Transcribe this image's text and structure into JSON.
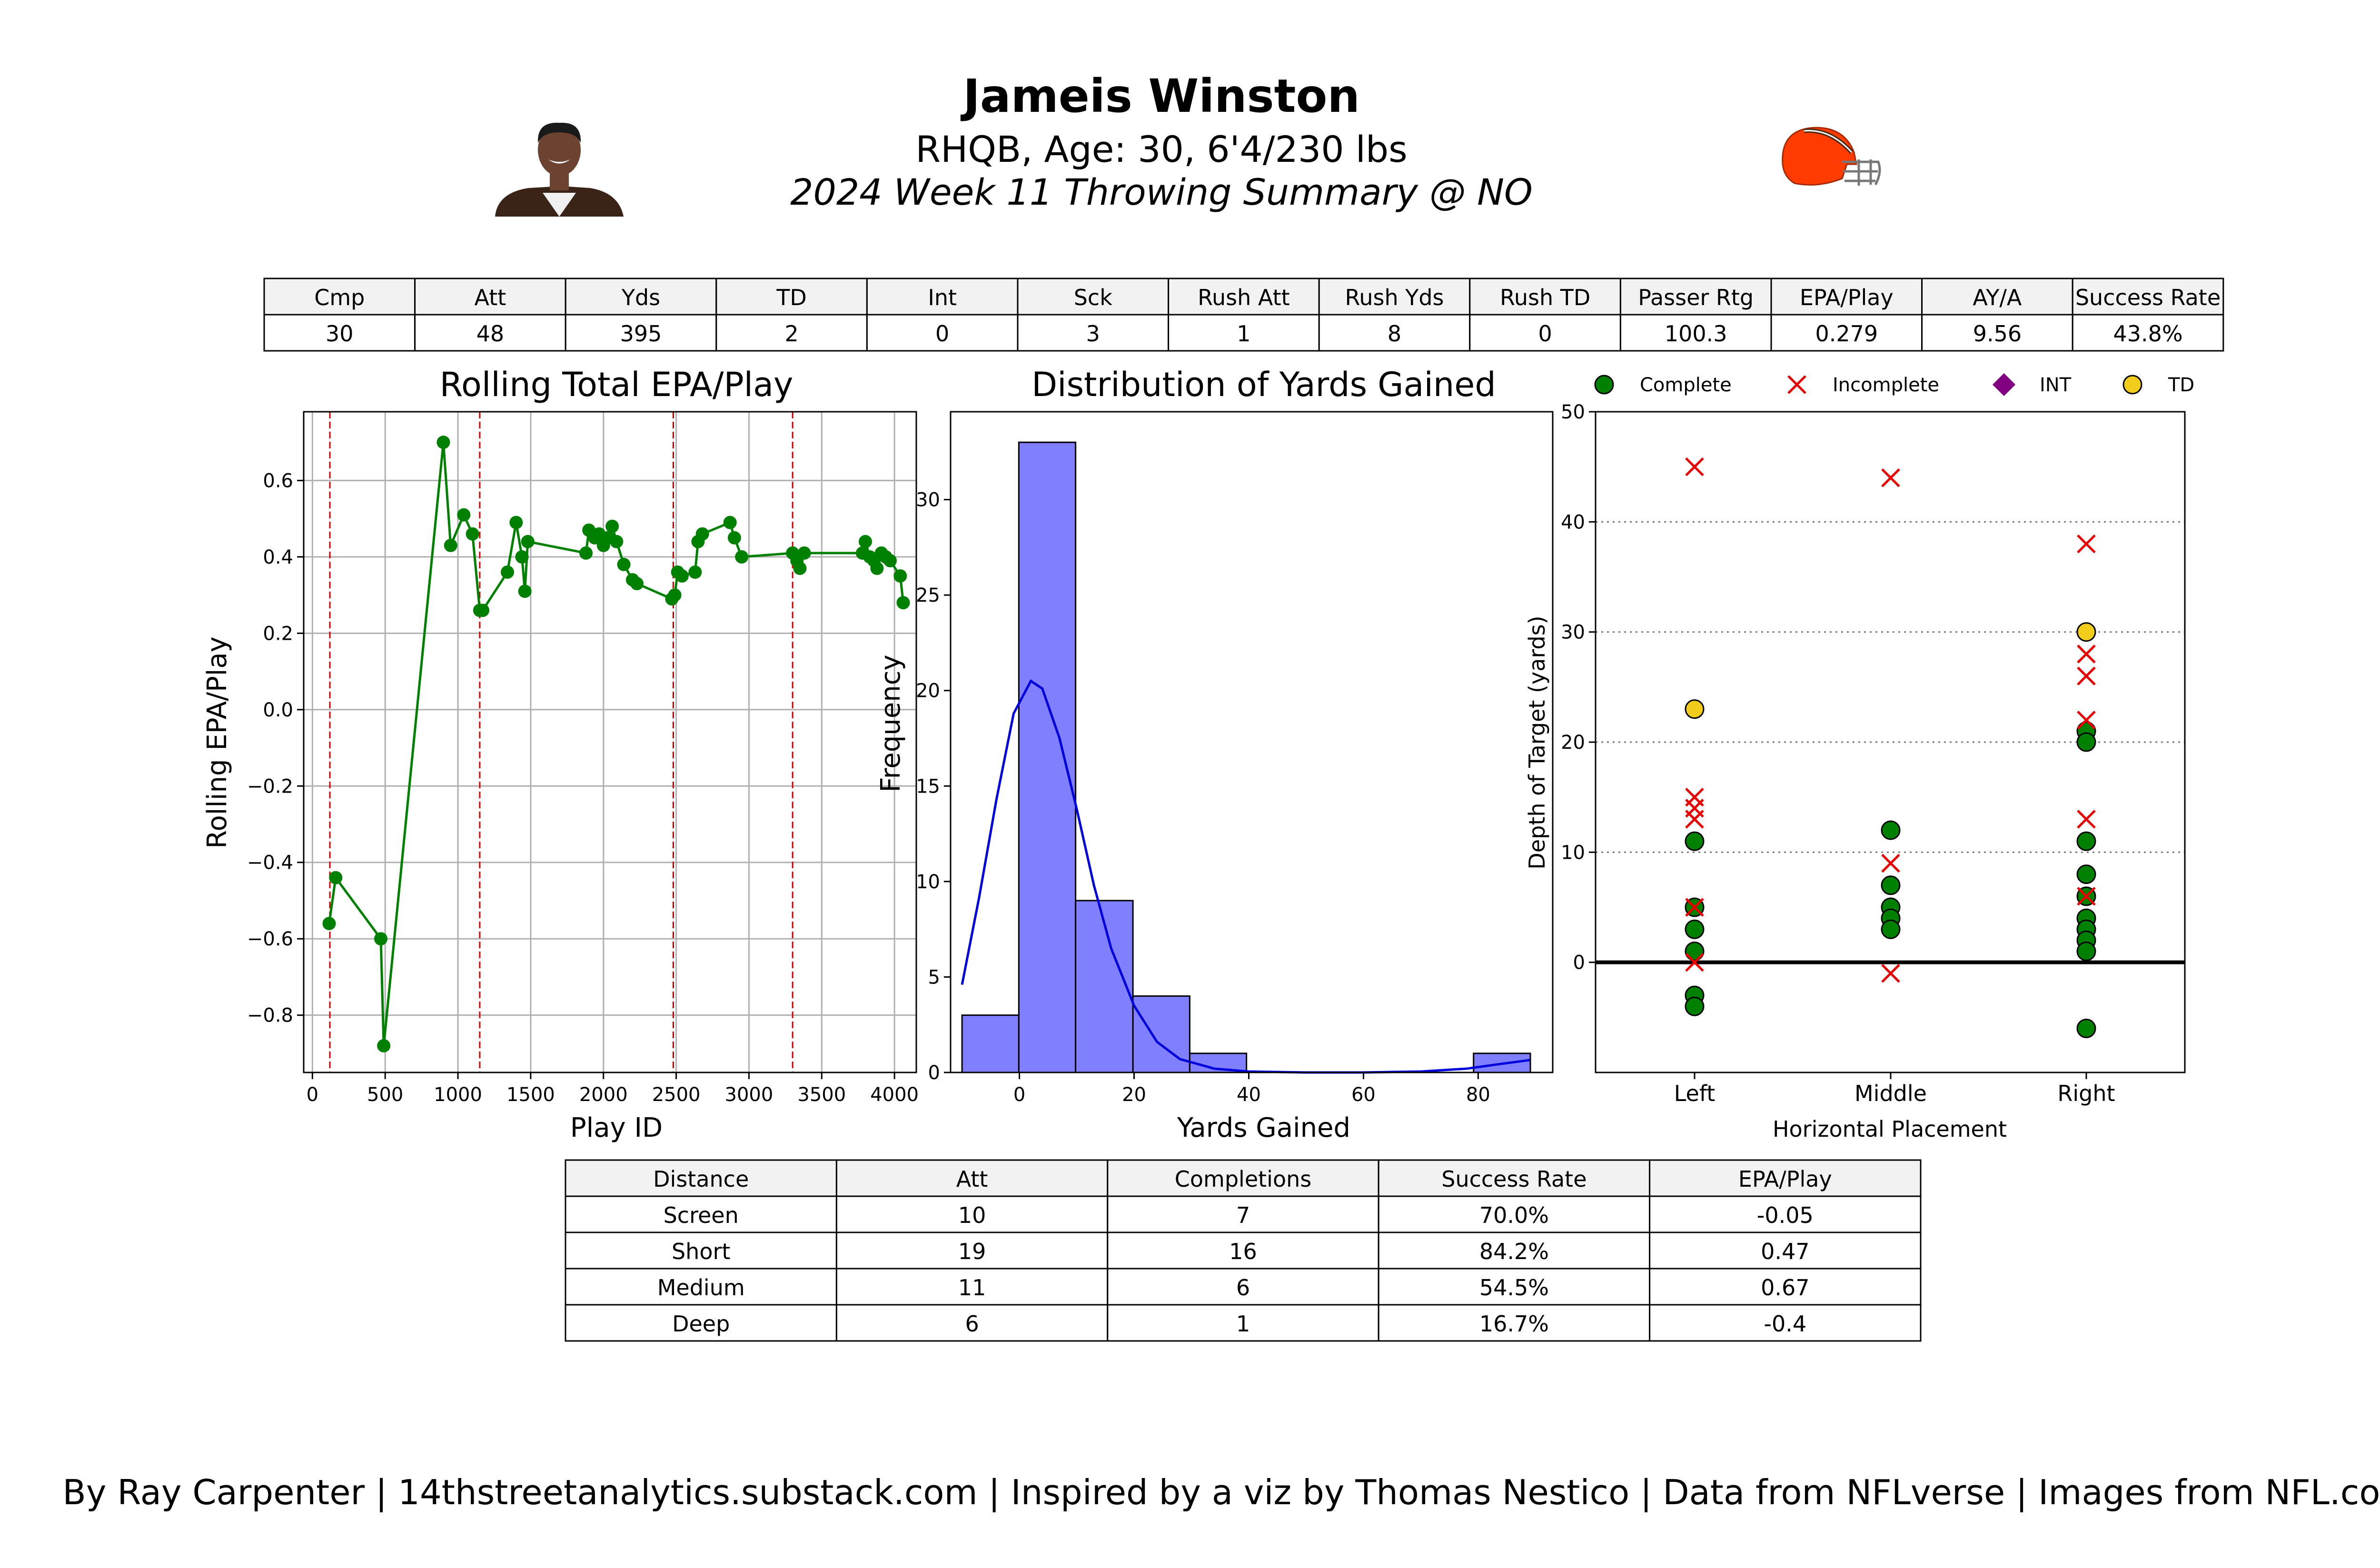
{
  "header": {
    "player_name": "Jameis Winston",
    "bio": "RHQB, Age: 30, 6'4/230 lbs",
    "subtitle": "2024 Week 11 Throwing Summary @ NO",
    "player_photo_icon": "player-headshot",
    "team_logo_icon": "browns-helmet-logo"
  },
  "summary_table": {
    "headers": [
      "Cmp",
      "Att",
      "Yds",
      "TD",
      "Int",
      "Sck",
      "Rush Att",
      "Rush Yds",
      "Rush TD",
      "Passer Rtg",
      "EPA/Play",
      "AY/A",
      "Success Rate"
    ],
    "values": [
      "30",
      "48",
      "395",
      "2",
      "0",
      "3",
      "1",
      "8",
      "0",
      "100.3",
      "0.279",
      "9.56",
      "43.8%"
    ]
  },
  "distance_table": {
    "headers": [
      "Distance",
      "Att",
      "Completions",
      "Success Rate",
      "EPA/Play"
    ],
    "rows": [
      [
        "Screen",
        "10",
        "7",
        "70.0%",
        "-0.05"
      ],
      [
        "Short",
        "19",
        "16",
        "84.2%",
        "0.47"
      ],
      [
        "Medium",
        "11",
        "6",
        "54.5%",
        "0.67"
      ],
      [
        "Deep",
        "6",
        "1",
        "16.7%",
        "-0.4"
      ]
    ]
  },
  "footer": "By Ray Carpenter | 14thstreetanalytics.substack.com | Inspired by a viz by Thomas Nestico | Data from NFLverse | Images from NFL.com",
  "colors": {
    "line": "#008000",
    "vline": "#d40000",
    "bar": "#8080ff",
    "kde": "#0000dd",
    "complete": "#008000",
    "incomplete": "#e60000",
    "int": "#800080",
    "td": "#f2cc1a",
    "table_header_bg": "#f2f2f2",
    "helmet": "#ff3c00"
  },
  "chart_data": [
    {
      "type": "line",
      "title": "Rolling Total EPA/Play",
      "xlabel": "Play ID",
      "ylabel": "Rolling EPA/Play",
      "xlim": [
        -60,
        4150
      ],
      "ylim": [
        -0.95,
        0.78
      ],
      "xticks": [
        0,
        500,
        1000,
        1500,
        2000,
        2500,
        3000,
        3500,
        4000
      ],
      "yticks": [
        -0.8,
        -0.6,
        -0.4,
        -0.2,
        0.0,
        0.2,
        0.4,
        0.6
      ],
      "grid": true,
      "quarter_lines": [
        120,
        1150,
        2480,
        3300
      ],
      "points": [
        [
          115,
          -0.56
        ],
        [
          160,
          -0.44
        ],
        [
          470,
          -0.6
        ],
        [
          490,
          -0.88
        ],
        [
          900,
          0.7
        ],
        [
          950,
          0.43
        ],
        [
          1040,
          0.51
        ],
        [
          1100,
          0.46
        ],
        [
          1150,
          0.26
        ],
        [
          1170,
          0.26
        ],
        [
          1340,
          0.36
        ],
        [
          1400,
          0.49
        ],
        [
          1440,
          0.4
        ],
        [
          1460,
          0.31
        ],
        [
          1480,
          0.44
        ],
        [
          1880,
          0.41
        ],
        [
          1900,
          0.47
        ],
        [
          1940,
          0.45
        ],
        [
          1970,
          0.46
        ],
        [
          2000,
          0.43
        ],
        [
          2030,
          0.45
        ],
        [
          2060,
          0.48
        ],
        [
          2090,
          0.44
        ],
        [
          2140,
          0.38
        ],
        [
          2200,
          0.34
        ],
        [
          2230,
          0.33
        ],
        [
          2470,
          0.29
        ],
        [
          2490,
          0.3
        ],
        [
          2510,
          0.36
        ],
        [
          2540,
          0.35
        ],
        [
          2630,
          0.36
        ],
        [
          2650,
          0.44
        ],
        [
          2680,
          0.46
        ],
        [
          2870,
          0.49
        ],
        [
          2900,
          0.45
        ],
        [
          2950,
          0.4
        ],
        [
          3300,
          0.41
        ],
        [
          3330,
          0.39
        ],
        [
          3350,
          0.37
        ],
        [
          3380,
          0.41
        ],
        [
          3780,
          0.41
        ],
        [
          3800,
          0.44
        ],
        [
          3830,
          0.4
        ],
        [
          3860,
          0.39
        ],
        [
          3880,
          0.37
        ],
        [
          3910,
          0.41
        ],
        [
          3940,
          0.4
        ],
        [
          3970,
          0.39
        ],
        [
          4040,
          0.35
        ],
        [
          4060,
          0.28
        ]
      ]
    },
    {
      "type": "bar",
      "title": "Distribution of Yards Gained",
      "xlabel": "Yards Gained",
      "ylabel": "Frequency",
      "xlim": [
        -12,
        93
      ],
      "ylim": [
        0,
        34.6
      ],
      "xticks": [
        0,
        20,
        40,
        60,
        80
      ],
      "yticks": [
        0,
        5,
        10,
        15,
        20,
        25,
        30
      ],
      "bins": [
        [
          -10,
          -0.1,
          3
        ],
        [
          -0.1,
          9.8,
          33
        ],
        [
          9.8,
          19.8,
          9
        ],
        [
          19.8,
          29.7,
          4
        ],
        [
          29.7,
          39.6,
          1
        ],
        [
          39.6,
          49.5,
          0
        ],
        [
          49.5,
          59.4,
          0
        ],
        [
          59.4,
          69.3,
          0
        ],
        [
          69.3,
          79.2,
          0
        ],
        [
          79.2,
          89.1,
          1
        ]
      ],
      "kde": [
        [
          -10,
          4.6
        ],
        [
          -7,
          9.2
        ],
        [
          -4,
          14.3
        ],
        [
          -1,
          18.8
        ],
        [
          2,
          20.5
        ],
        [
          4,
          20.1
        ],
        [
          7,
          17.5
        ],
        [
          10,
          13.8
        ],
        [
          13,
          9.8
        ],
        [
          16,
          6.5
        ],
        [
          20,
          3.5
        ],
        [
          24,
          1.6
        ],
        [
          28,
          0.7
        ],
        [
          34,
          0.2
        ],
        [
          40,
          0.05
        ],
        [
          50,
          0.0
        ],
        [
          60,
          0.0
        ],
        [
          70,
          0.05
        ],
        [
          78,
          0.2
        ],
        [
          84,
          0.45
        ],
        [
          89,
          0.65
        ]
      ]
    },
    {
      "type": "scatter",
      "xlabel": "Horizontal Placement",
      "ylabel": "Depth of Target (yards)",
      "categories": [
        "Left",
        "Middle",
        "Right"
      ],
      "ylim": [
        -10,
        50
      ],
      "yticks": [
        0,
        10,
        20,
        30,
        40,
        50
      ],
      "grid": "horizontal dotted",
      "legend": "top",
      "legend_labels": [
        "Complete",
        "Incomplete",
        "INT",
        "TD"
      ],
      "complete": [
        [
          "Left",
          11
        ],
        [
          "Left",
          5
        ],
        [
          "Left",
          3
        ],
        [
          "Left",
          1
        ],
        [
          "Left",
          -3
        ],
        [
          "Left",
          -4
        ],
        [
          "Middle",
          12
        ],
        [
          "Middle",
          7
        ],
        [
          "Middle",
          5
        ],
        [
          "Middle",
          4
        ],
        [
          "Middle",
          3
        ],
        [
          "Right",
          21
        ],
        [
          "Right",
          20
        ],
        [
          "Right",
          11
        ],
        [
          "Right",
          8
        ],
        [
          "Right",
          6
        ],
        [
          "Right",
          4
        ],
        [
          "Right",
          3
        ],
        [
          "Right",
          2
        ],
        [
          "Right",
          1
        ],
        [
          "Right",
          -6
        ]
      ],
      "incomplete": [
        [
          "Left",
          45
        ],
        [
          "Left",
          15
        ],
        [
          "Left",
          14
        ],
        [
          "Left",
          13
        ],
        [
          "Left",
          5
        ],
        [
          "Left",
          0
        ],
        [
          "Middle",
          44
        ],
        [
          "Middle",
          9
        ],
        [
          "Middle",
          -1
        ],
        [
          "Right",
          38
        ],
        [
          "Right",
          28
        ],
        [
          "Right",
          26
        ],
        [
          "Right",
          22
        ],
        [
          "Right",
          13
        ],
        [
          "Right",
          6
        ]
      ],
      "int": [],
      "td": [
        [
          "Left",
          23
        ],
        [
          "Right",
          30
        ]
      ]
    }
  ]
}
